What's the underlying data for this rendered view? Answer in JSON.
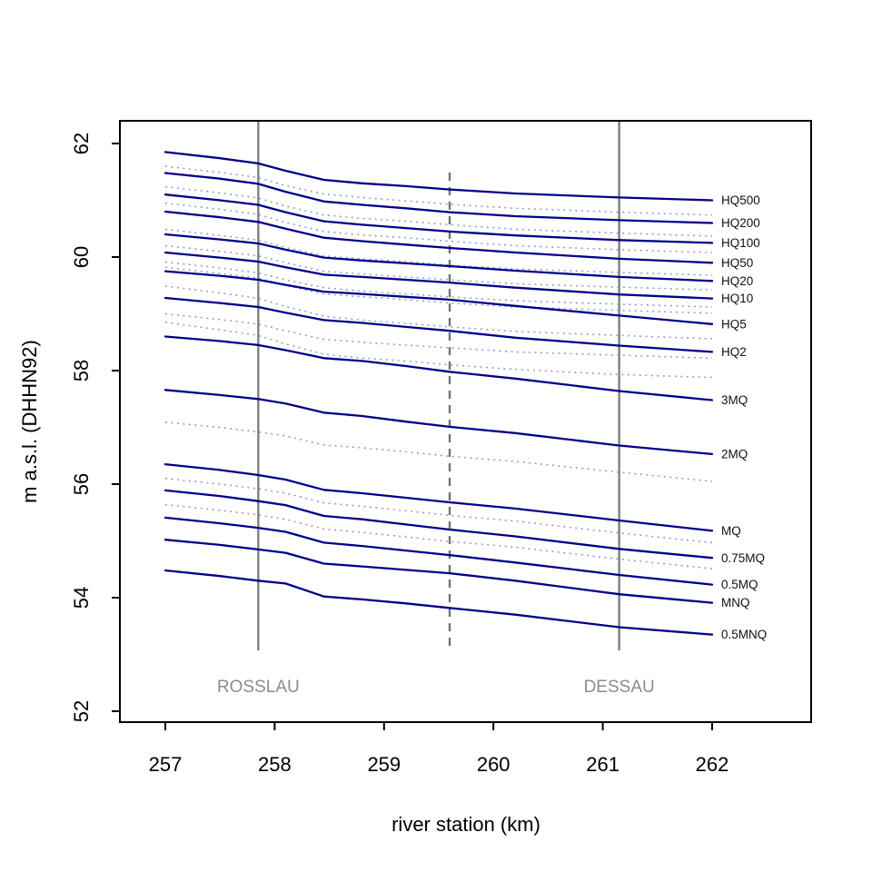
{
  "chart_data": {
    "type": "line",
    "title": "",
    "xlabel": "river station (km)",
    "ylabel": "m a.s.l. (DHHN92)",
    "xlim": [
      256.58,
      262.9
    ],
    "ylim": [
      51.8,
      62.4
    ],
    "x_ticks": [
      "257",
      "258",
      "259",
      "260",
      "261",
      "262"
    ],
    "y_ticks": [
      "52",
      "54",
      "56",
      "58",
      "60",
      "62"
    ],
    "grid": false,
    "legend_position": "right-of-lines",
    "stations": [
      257.0,
      257.5,
      257.85,
      258.1,
      258.45,
      258.8,
      259.2,
      259.6,
      260.2,
      261.15,
      262.0
    ],
    "series": [
      {
        "name": "HQ500",
        "values": [
          61.85,
          61.74,
          61.65,
          61.52,
          61.36,
          61.3,
          61.25,
          61.19,
          61.12,
          61.05,
          61.0
        ]
      },
      {
        "name": "HQ200",
        "values": [
          61.48,
          61.38,
          61.29,
          61.15,
          60.98,
          60.92,
          60.86,
          60.79,
          60.72,
          60.65,
          60.6
        ]
      },
      {
        "name": "HQ100",
        "values": [
          61.1,
          61.0,
          60.92,
          60.79,
          60.63,
          60.57,
          60.51,
          60.45,
          60.38,
          60.3,
          60.25
        ]
      },
      {
        "name": "HQ50",
        "values": [
          60.8,
          60.7,
          60.62,
          60.5,
          60.34,
          60.28,
          60.22,
          60.16,
          60.08,
          59.97,
          59.9
        ]
      },
      {
        "name": "HQ20",
        "values": [
          60.4,
          60.31,
          60.24,
          60.13,
          59.99,
          59.94,
          59.89,
          59.84,
          59.76,
          59.65,
          59.58
        ]
      },
      {
        "name": "HQ10",
        "values": [
          60.08,
          59.99,
          59.92,
          59.82,
          59.69,
          59.65,
          59.6,
          59.55,
          59.46,
          59.34,
          59.27
        ]
      },
      {
        "name": "HQ5",
        "values": [
          59.75,
          59.67,
          59.6,
          59.51,
          59.39,
          59.35,
          59.3,
          59.25,
          59.14,
          58.97,
          58.82
        ]
      },
      {
        "name": "HQ2",
        "values": [
          59.28,
          59.19,
          59.12,
          59.02,
          58.89,
          58.84,
          58.77,
          58.7,
          58.58,
          58.44,
          58.33
        ]
      },
      {
        "name": "3MQ",
        "values": [
          58.6,
          58.52,
          58.45,
          58.36,
          58.22,
          58.17,
          58.08,
          57.98,
          57.86,
          57.64,
          57.48
        ]
      },
      {
        "name": "2MQ",
        "values": [
          57.66,
          57.57,
          57.5,
          57.42,
          57.26,
          57.2,
          57.1,
          57.01,
          56.9,
          56.68,
          56.53
        ]
      },
      {
        "name": "MQ",
        "values": [
          56.35,
          56.25,
          56.16,
          56.08,
          55.9,
          55.84,
          55.76,
          55.68,
          55.57,
          55.36,
          55.18
        ]
      },
      {
        "name": "0.75MQ",
        "values": [
          55.89,
          55.79,
          55.7,
          55.63,
          55.44,
          55.38,
          55.29,
          55.2,
          55.08,
          54.86,
          54.7
        ]
      },
      {
        "name": "0.5MQ",
        "values": [
          55.41,
          55.31,
          55.23,
          55.16,
          54.97,
          54.91,
          54.83,
          54.75,
          54.62,
          54.4,
          54.23
        ]
      },
      {
        "name": "MNQ",
        "values": [
          55.02,
          54.93,
          54.85,
          54.79,
          54.6,
          54.55,
          54.49,
          54.43,
          54.3,
          54.06,
          53.91
        ]
      },
      {
        "name": "0.5MNQ",
        "values": [
          54.48,
          54.38,
          54.3,
          54.25,
          54.02,
          53.97,
          53.9,
          53.82,
          53.7,
          53.48,
          53.35
        ]
      }
    ],
    "dotted_series": [
      {
        "name": "intermediate-1",
        "values": [
          61.6,
          61.49,
          61.4,
          61.26,
          61.11,
          61.05,
          60.99,
          60.93,
          60.86,
          60.79,
          60.74
        ]
      },
      {
        "name": "intermediate-2",
        "values": [
          61.24,
          61.13,
          61.04,
          60.9,
          60.74,
          60.68,
          60.63,
          60.57,
          60.49,
          60.42,
          60.37
        ]
      },
      {
        "name": "intermediate-3",
        "values": [
          60.95,
          60.84,
          60.75,
          60.61,
          60.45,
          60.39,
          60.34,
          60.28,
          60.2,
          60.13,
          60.08
        ]
      },
      {
        "name": "intermediate-4",
        "values": [
          60.49,
          60.38,
          60.3,
          60.17,
          60.02,
          59.97,
          59.92,
          59.86,
          59.79,
          59.73,
          59.68
        ]
      },
      {
        "name": "intermediate-5",
        "values": [
          60.2,
          60.1,
          60.02,
          59.9,
          59.75,
          59.7,
          59.65,
          59.6,
          59.53,
          59.47,
          59.42
        ]
      },
      {
        "name": "intermediate-6",
        "values": [
          59.91,
          59.81,
          59.72,
          59.6,
          59.46,
          59.4,
          59.35,
          59.3,
          59.23,
          59.17,
          59.12
        ]
      },
      {
        "name": "intermediate-7",
        "values": [
          59.82,
          59.71,
          59.63,
          59.5,
          59.35,
          59.3,
          59.25,
          59.19,
          59.12,
          59.06,
          59.01
        ]
      },
      {
        "name": "intermediate-8",
        "values": [
          59.49,
          59.37,
          59.27,
          59.13,
          58.96,
          58.89,
          58.83,
          58.77,
          58.69,
          58.62,
          58.56
        ]
      },
      {
        "name": "intermediate-9",
        "values": [
          59.0,
          58.9,
          58.82,
          58.7,
          58.55,
          58.5,
          58.45,
          58.4,
          58.33,
          58.27,
          58.22
        ]
      },
      {
        "name": "intermediate-10",
        "values": [
          58.85,
          58.72,
          58.62,
          58.47,
          58.29,
          58.22,
          58.17,
          58.1,
          58.02,
          57.93,
          57.88
        ]
      },
      {
        "name": "intermediate-11",
        "values": [
          57.09,
          57.0,
          56.92,
          56.85,
          56.69,
          56.64,
          56.57,
          56.49,
          56.4,
          56.21,
          56.05
        ]
      },
      {
        "name": "intermediate-12",
        "values": [
          56.1,
          56.0,
          55.92,
          55.84,
          55.67,
          55.61,
          55.53,
          55.45,
          55.35,
          55.14,
          54.97
        ]
      },
      {
        "name": "intermediate-13",
        "values": [
          55.64,
          55.54,
          55.46,
          55.38,
          55.21,
          55.15,
          55.07,
          54.99,
          54.89,
          54.68,
          54.51
        ]
      }
    ],
    "annotations": {
      "vlines": [
        {
          "label": "ROSSLAU",
          "km": 257.85,
          "style": "solid"
        },
        {
          "label": "DESSAU",
          "km": 261.15,
          "style": "solid"
        },
        {
          "label": "",
          "km": 259.6,
          "style": "dashed"
        }
      ]
    },
    "colors": {
      "solid_line": "#00008b",
      "dotted_line": "#9494cf",
      "vline": "#808080",
      "vline_dashed": "#737373",
      "city_label": "#8c8c8c",
      "axis": "#000000",
      "series_label": "#111111",
      "background": "#ffffff"
    }
  }
}
